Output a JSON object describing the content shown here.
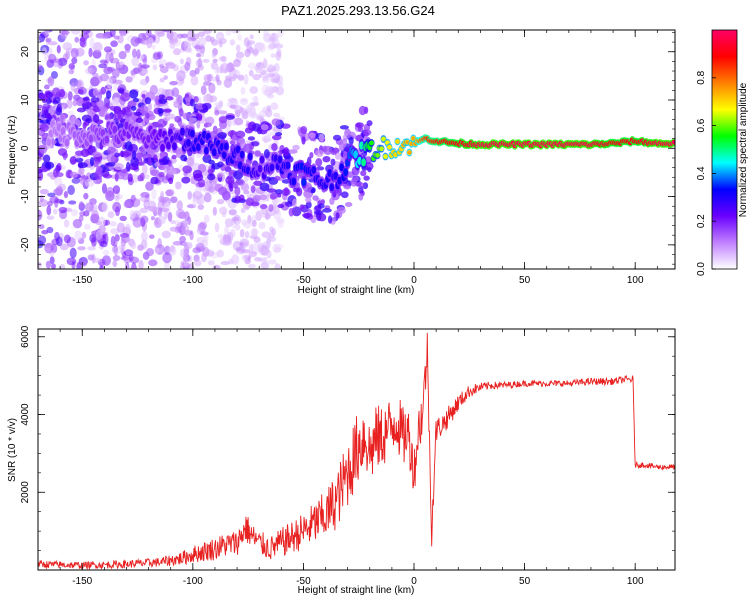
{
  "page": {
    "title": "PAZ1.2025.293.13.56.G24"
  },
  "chart_data": [
    {
      "type": "heatmap",
      "name": "spectrogram",
      "title": "PAZ1.2025.293.13.56.G24",
      "xlabel": "Height of straight line (km)",
      "ylabel": "Frequency (Hz)",
      "xlim": [
        -170,
        118
      ],
      "ylim": [
        -25,
        24.5
      ],
      "xticks": [
        -150,
        -100,
        -50,
        0,
        50,
        100
      ],
      "yticks": [
        -20,
        -10,
        0,
        10,
        20
      ],
      "colorbar": {
        "label": "Normalized spectral amplitude",
        "range": [
          0,
          1
        ],
        "ticks": [
          0.0,
          0.2,
          0.4,
          0.6,
          0.8
        ],
        "tick_labels": [
          "0.0",
          "0.2",
          "0.4",
          "0.6",
          "0.8"
        ],
        "colormap": [
          "#ffffff",
          "#c080ff",
          "#6a00ff",
          "#0000ff",
          "#00ffff",
          "#00ff00",
          "#ffff00",
          "#ff8000",
          "#ff0000",
          "#ff0066"
        ]
      },
      "ridge": {
        "x": [
          -170,
          -150,
          -130,
          -120,
          -110,
          -100,
          -90,
          -80,
          -75,
          -70,
          -60,
          -55,
          -50,
          -45,
          -40,
          -35,
          -30,
          -25,
          -20,
          -10,
          0,
          5,
          10,
          20,
          30,
          40,
          50,
          60,
          70,
          80,
          90,
          100,
          110,
          118
        ],
        "y": [
          3,
          3,
          3,
          2,
          2,
          2,
          0,
          -2,
          -3,
          -4,
          -3,
          -5,
          -5,
          -6,
          -7,
          -6,
          -3,
          -1.5,
          -0.5,
          0.5,
          1,
          2,
          1.5,
          1,
          0.8,
          0.8,
          0.8,
          0.8,
          0.8,
          0.8,
          1,
          1.5,
          1,
          1
        ],
        "amplitude": [
          0.1,
          0.15,
          0.2,
          0.2,
          0.25,
          0.3,
          0.3,
          0.3,
          0.3,
          0.25,
          0.3,
          0.3,
          0.35,
          0.3,
          0.3,
          0.3,
          0.35,
          0.45,
          0.55,
          0.7,
          0.7,
          0.8,
          0.85,
          0.9,
          0.95,
          0.95,
          0.95,
          0.95,
          0.95,
          0.95,
          0.9,
          0.9,
          0.95,
          0.95
        ]
      }
    },
    {
      "type": "line",
      "name": "snr",
      "xlabel": "Height of straight line (km)",
      "ylabel": "SNR (10 * v/v)",
      "xlim": [
        -170,
        118
      ],
      "ylim": [
        0,
        6200
      ],
      "xticks": [
        -150,
        -100,
        -50,
        0,
        50,
        100
      ],
      "yticks": [
        2000,
        4000,
        6000
      ],
      "color": "#e82020",
      "series": [
        {
          "name": "SNR",
          "x": [
            -170,
            -150,
            -130,
            -115,
            -105,
            -100,
            -90,
            -85,
            -80,
            -76,
            -73,
            -70,
            -65,
            -60,
            -55,
            -50,
            -45,
            -40,
            -35,
            -30,
            -25,
            -22,
            -20,
            -17,
            -15,
            -10,
            -8,
            -5,
            -3,
            -1,
            0,
            2,
            4,
            6,
            8,
            10,
            12,
            15,
            20,
            25,
            30,
            35,
            40,
            50,
            60,
            70,
            80,
            90,
            95,
            99,
            100,
            105,
            110,
            118
          ],
          "values": [
            150,
            120,
            150,
            200,
            300,
            400,
            550,
            650,
            700,
            1100,
            850,
            700,
            550,
            700,
            850,
            1000,
            1200,
            1400,
            1800,
            2500,
            3200,
            3500,
            3000,
            3400,
            3400,
            3700,
            3900,
            3400,
            3600,
            3000,
            2500,
            3600,
            4100,
            5700,
            1000,
            3600,
            3700,
            3900,
            4300,
            4600,
            4700,
            4750,
            4750,
            4800,
            4800,
            4800,
            4850,
            4850,
            4900,
            4900,
            2700,
            2700,
            2650,
            2650
          ],
          "noise_amplitude": [
            100,
            90,
            100,
            120,
            180,
            220,
            300,
            320,
            330,
            400,
            350,
            320,
            320,
            380,
            420,
            480,
            560,
            650,
            750,
            900,
            950,
            950,
            900,
            850,
            850,
            800,
            800,
            800,
            750,
            700,
            600,
            700,
            700,
            500,
            400,
            350,
            300,
            280,
            220,
            160,
            120,
            100,
            90,
            80,
            80,
            80,
            90,
            90,
            90,
            90,
            70,
            70,
            70,
            70
          ]
        }
      ]
    }
  ]
}
